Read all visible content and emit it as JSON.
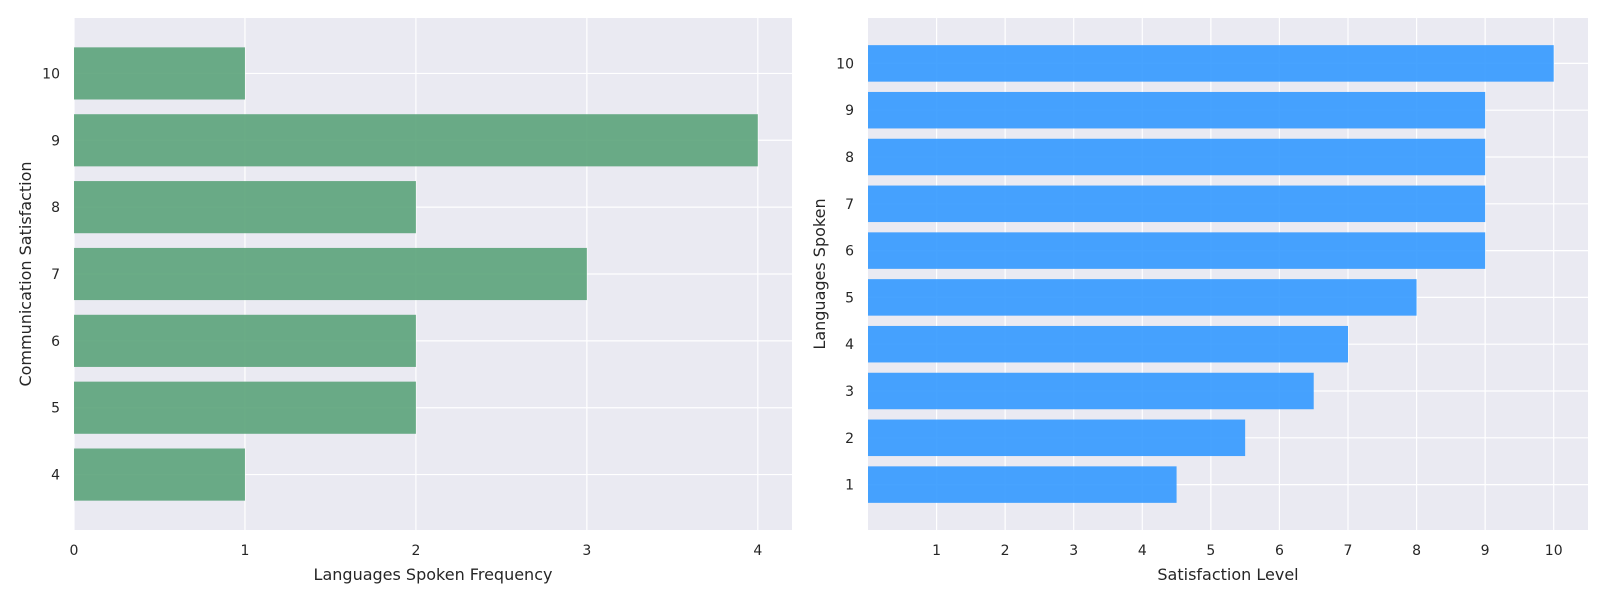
{
  "chart_data": [
    {
      "type": "bar",
      "orientation": "horizontal",
      "categories": [
        "4",
        "5",
        "6",
        "7",
        "8",
        "9",
        "10"
      ],
      "values": [
        1,
        2,
        2,
        3,
        2,
        4,
        1
      ],
      "title": "",
      "xlabel": "Languages Spoken Frequency",
      "ylabel": "Communication Satisfaction",
      "xlim": [
        0,
        4.2
      ],
      "xticks": [
        "0",
        "1",
        "2",
        "3",
        "4"
      ],
      "grid": true,
      "bar_color": "#5ba37a",
      "background": "#eaeaf2"
    },
    {
      "type": "bar",
      "orientation": "horizontal",
      "categories": [
        "1",
        "2",
        "3",
        "4",
        "5",
        "6",
        "7",
        "8",
        "9",
        "10"
      ],
      "values": [
        4.5,
        5.5,
        6.5,
        7,
        8,
        9,
        9,
        9,
        9,
        10
      ],
      "title": "",
      "xlabel": "Satisfaction Level",
      "ylabel": "Languages Spoken",
      "xlim": [
        0,
        10.5
      ],
      "xticks": [
        "1",
        "2",
        "3",
        "4",
        "5",
        "6",
        "7",
        "8",
        "9",
        "10"
      ],
      "grid": true,
      "bar_color": "#3399ff",
      "background": "#eaeaf2"
    }
  ]
}
